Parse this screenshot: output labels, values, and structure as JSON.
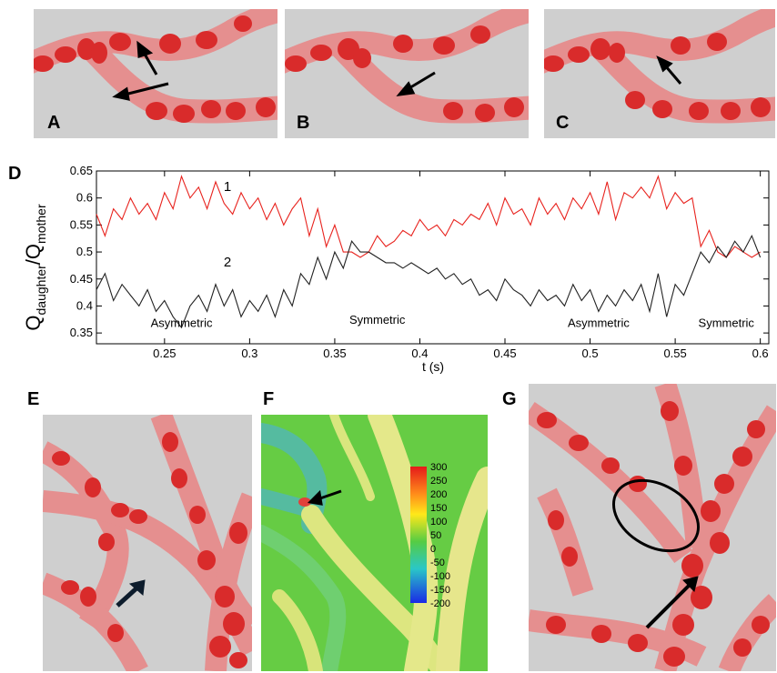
{
  "panels": {
    "A": {
      "label": "A"
    },
    "B": {
      "label": "B"
    },
    "C": {
      "label": "C"
    },
    "D": {
      "label": "D"
    },
    "E": {
      "label": "E"
    },
    "F": {
      "label": "F"
    },
    "G": {
      "label": "G"
    }
  },
  "colorbar": {
    "ticks": [
      "300",
      "250",
      "200",
      "150",
      "100",
      "50",
      "0",
      "-50",
      "-100",
      "-150",
      "-200"
    ],
    "values": [
      300,
      250,
      200,
      150,
      100,
      50,
      0,
      -50,
      -100,
      -150,
      -200
    ]
  },
  "colors": {
    "vessel": "#e58f8f",
    "rbc": "#d92b2b",
    "background": "#cfcfcf",
    "series1": "#e8231e",
    "series2": "#222222"
  },
  "chart_data": {
    "type": "line",
    "ylabel_main": "Q",
    "ylabel_sub1": "daughter",
    "ylabel_sep": "/Q",
    "ylabel_sub2": "mother",
    "xlabel": "t (s)",
    "xlim": [
      0.21,
      0.605
    ],
    "ylim": [
      0.33,
      0.65
    ],
    "xticks": [
      0.25,
      0.3,
      0.35,
      0.4,
      0.45,
      0.5,
      0.55,
      0.6
    ],
    "xtick_labels": [
      "0.25",
      "0.3",
      "0.35",
      "0.4",
      "0.45",
      "0.5",
      "0.55",
      "0.6"
    ],
    "yticks": [
      0.35,
      0.4,
      0.45,
      0.5,
      0.55,
      0.6,
      0.65
    ],
    "ytick_labels": [
      "0.35",
      "0.4",
      "0.45",
      "0.5",
      "0.55",
      "0.6",
      "0.65"
    ],
    "series": [
      {
        "name": "1",
        "x": [
          0.21,
          0.215,
          0.22,
          0.225,
          0.23,
          0.235,
          0.24,
          0.245,
          0.25,
          0.255,
          0.26,
          0.265,
          0.27,
          0.275,
          0.28,
          0.285,
          0.29,
          0.295,
          0.3,
          0.305,
          0.31,
          0.315,
          0.32,
          0.325,
          0.33,
          0.335,
          0.34,
          0.345,
          0.35,
          0.355,
          0.36,
          0.365,
          0.37,
          0.375,
          0.38,
          0.385,
          0.39,
          0.395,
          0.4,
          0.405,
          0.41,
          0.415,
          0.42,
          0.425,
          0.43,
          0.435,
          0.44,
          0.445,
          0.45,
          0.455,
          0.46,
          0.465,
          0.47,
          0.475,
          0.48,
          0.485,
          0.49,
          0.495,
          0.5,
          0.505,
          0.51,
          0.515,
          0.52,
          0.525,
          0.53,
          0.535,
          0.54,
          0.545,
          0.55,
          0.555,
          0.56,
          0.565,
          0.57,
          0.575,
          0.58,
          0.585,
          0.59,
          0.595,
          0.6
        ],
        "y": [
          0.57,
          0.53,
          0.58,
          0.56,
          0.6,
          0.57,
          0.59,
          0.56,
          0.61,
          0.58,
          0.64,
          0.6,
          0.62,
          0.58,
          0.63,
          0.59,
          0.57,
          0.61,
          0.58,
          0.6,
          0.56,
          0.59,
          0.55,
          0.58,
          0.6,
          0.53,
          0.58,
          0.51,
          0.55,
          0.5,
          0.5,
          0.49,
          0.5,
          0.53,
          0.51,
          0.52,
          0.54,
          0.53,
          0.56,
          0.54,
          0.55,
          0.53,
          0.56,
          0.55,
          0.57,
          0.56,
          0.59,
          0.55,
          0.6,
          0.57,
          0.58,
          0.55,
          0.6,
          0.57,
          0.59,
          0.56,
          0.6,
          0.58,
          0.61,
          0.57,
          0.63,
          0.56,
          0.61,
          0.6,
          0.62,
          0.6,
          0.64,
          0.58,
          0.61,
          0.59,
          0.6,
          0.51,
          0.54,
          0.5,
          0.49,
          0.51,
          0.5,
          0.49,
          0.5
        ]
      },
      {
        "name": "2",
        "x": [
          0.21,
          0.215,
          0.22,
          0.225,
          0.23,
          0.235,
          0.24,
          0.245,
          0.25,
          0.255,
          0.26,
          0.265,
          0.27,
          0.275,
          0.28,
          0.285,
          0.29,
          0.295,
          0.3,
          0.305,
          0.31,
          0.315,
          0.32,
          0.325,
          0.33,
          0.335,
          0.34,
          0.345,
          0.35,
          0.355,
          0.36,
          0.365,
          0.37,
          0.375,
          0.38,
          0.385,
          0.39,
          0.395,
          0.4,
          0.405,
          0.41,
          0.415,
          0.42,
          0.425,
          0.43,
          0.435,
          0.44,
          0.445,
          0.45,
          0.455,
          0.46,
          0.465,
          0.47,
          0.475,
          0.48,
          0.485,
          0.49,
          0.495,
          0.5,
          0.505,
          0.51,
          0.515,
          0.52,
          0.525,
          0.53,
          0.535,
          0.54,
          0.545,
          0.55,
          0.555,
          0.56,
          0.565,
          0.57,
          0.575,
          0.58,
          0.585,
          0.59,
          0.595,
          0.6
        ],
        "y": [
          0.43,
          0.46,
          0.41,
          0.44,
          0.42,
          0.4,
          0.43,
          0.39,
          0.41,
          0.38,
          0.36,
          0.4,
          0.42,
          0.39,
          0.44,
          0.4,
          0.43,
          0.38,
          0.41,
          0.39,
          0.42,
          0.38,
          0.43,
          0.4,
          0.46,
          0.44,
          0.49,
          0.45,
          0.5,
          0.47,
          0.52,
          0.5,
          0.5,
          0.49,
          0.48,
          0.48,
          0.47,
          0.48,
          0.47,
          0.46,
          0.47,
          0.45,
          0.46,
          0.44,
          0.45,
          0.42,
          0.43,
          0.41,
          0.45,
          0.43,
          0.42,
          0.4,
          0.43,
          0.41,
          0.42,
          0.4,
          0.44,
          0.41,
          0.43,
          0.39,
          0.42,
          0.4,
          0.43,
          0.41,
          0.44,
          0.39,
          0.46,
          0.38,
          0.44,
          0.42,
          0.46,
          0.5,
          0.48,
          0.51,
          0.49,
          0.52,
          0.5,
          0.53,
          0.49
        ]
      }
    ],
    "curve_labels": [
      {
        "text": "1",
        "x": 0.287,
        "y": 0.613
      },
      {
        "text": "2",
        "x": 0.287,
        "y": 0.473
      }
    ],
    "annotations": [
      {
        "text": "Asymmetric",
        "x": 0.26,
        "y": 0.361
      },
      {
        "text": "Symmetric",
        "x": 0.375,
        "y": 0.367
      },
      {
        "text": "Asymmetric",
        "x": 0.505,
        "y": 0.361
      },
      {
        "text": "Symmetric",
        "x": 0.58,
        "y": 0.361
      }
    ]
  }
}
